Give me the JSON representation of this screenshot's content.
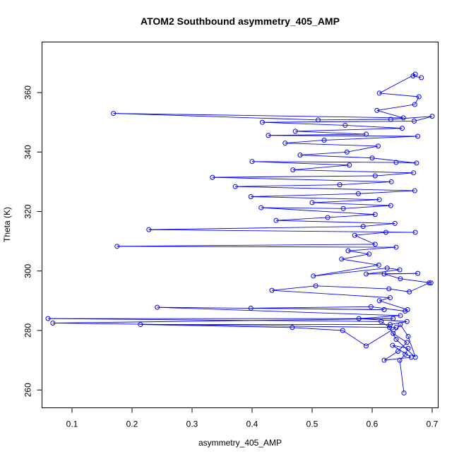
{
  "chart_data": {
    "type": "line",
    "title": "ATOM2 Southbound asymmetry_405_AMP",
    "xlabel": "asymmetry_405_AMP",
    "ylabel": "Theta (K)",
    "xlim": [
      0.05,
      0.71
    ],
    "ylim": [
      254,
      377
    ],
    "xticks": [
      "0.1",
      "0.2",
      "0.3",
      "0.4",
      "0.5",
      "0.6",
      "0.7"
    ],
    "yticks": [
      "260",
      "280",
      "300",
      "320",
      "340",
      "360"
    ],
    "marker": "open-circle",
    "series_color": "#0000ff",
    "series": [
      {
        "points": [
          [
            0.653,
            259
          ],
          [
            0.646,
            270
          ],
          [
            0.655,
            272
          ],
          [
            0.66,
            274
          ],
          [
            0.634,
            275
          ],
          [
            0.665,
            271
          ],
          [
            0.62,
            270
          ],
          [
            0.643,
            273
          ],
          [
            0.658,
            276
          ],
          [
            0.635,
            279
          ],
          [
            0.647,
            282
          ],
          [
            0.66,
            278
          ],
          [
            0.672,
            271
          ],
          [
            0.64,
            277
          ],
          [
            0.629,
            281
          ],
          [
            0.615,
            283
          ],
          [
            0.06,
            284
          ],
          [
            0.635,
            284
          ],
          [
            0.068,
            282.5
          ],
          [
            0.64,
            281
          ],
          [
            0.59,
            274.8
          ],
          [
            0.551,
            280
          ],
          [
            0.467,
            281
          ],
          [
            0.214,
            282
          ],
          [
            0.63,
            282
          ],
          [
            0.658,
            283
          ],
          [
            0.578,
            284
          ],
          [
            0.647,
            285
          ],
          [
            0.242,
            287.8
          ],
          [
            0.62,
            287
          ],
          [
            0.398,
            287.5
          ],
          [
            0.598,
            288
          ],
          [
            0.655,
            286.5
          ],
          [
            0.659,
            287
          ],
          [
            0.612,
            290
          ],
          [
            0.63,
            291
          ],
          [
            0.433,
            293.5
          ],
          [
            0.506,
            295
          ],
          [
            0.628,
            294
          ],
          [
            0.662,
            293
          ],
          [
            0.695,
            296
          ],
          [
            0.698,
            296
          ],
          [
            0.647,
            297.4
          ],
          [
            0.62,
            299
          ],
          [
            0.676,
            299.2
          ],
          [
            0.59,
            299
          ],
          [
            0.646,
            300.4
          ],
          [
            0.625,
            301
          ],
          [
            0.502,
            298.3
          ],
          [
            0.611,
            302
          ],
          [
            0.549,
            304
          ],
          [
            0.595,
            305.7
          ],
          [
            0.56,
            306.8
          ],
          [
            0.64,
            308
          ],
          [
            0.175,
            308.3
          ],
          [
            0.605,
            309
          ],
          [
            0.571,
            312
          ],
          [
            0.623,
            313
          ],
          [
            0.672,
            313
          ],
          [
            0.228,
            313.9
          ],
          [
            0.585,
            315
          ],
          [
            0.638,
            316
          ],
          [
            0.44,
            317
          ],
          [
            0.526,
            318
          ],
          [
            0.605,
            319
          ],
          [
            0.415,
            321.3
          ],
          [
            0.552,
            321
          ],
          [
            0.631,
            322
          ],
          [
            0.5,
            323
          ],
          [
            0.612,
            324
          ],
          [
            0.398,
            325
          ],
          [
            0.577,
            326
          ],
          [
            0.671,
            327
          ],
          [
            0.372,
            328.4
          ],
          [
            0.546,
            329
          ],
          [
            0.632,
            330
          ],
          [
            0.334,
            331.5
          ],
          [
            0.605,
            332
          ],
          [
            0.669,
            333
          ],
          [
            0.468,
            334
          ],
          [
            0.562,
            335.6
          ],
          [
            0.4,
            336.8
          ],
          [
            0.64,
            336.5
          ],
          [
            0.674,
            336.3
          ],
          [
            0.6,
            338
          ],
          [
            0.48,
            339
          ],
          [
            0.558,
            340
          ],
          [
            0.61,
            342
          ],
          [
            0.455,
            343
          ],
          [
            0.52,
            344
          ],
          [
            0.676,
            345.3
          ],
          [
            0.427,
            345.6
          ],
          [
            0.59,
            346
          ],
          [
            0.472,
            347
          ],
          [
            0.65,
            348
          ],
          [
            0.555,
            349
          ],
          [
            0.417,
            350
          ],
          [
            0.67,
            350.4
          ],
          [
            0.7,
            352
          ],
          [
            0.631,
            351
          ],
          [
            0.51,
            350.8
          ],
          [
            0.169,
            353
          ],
          [
            0.652,
            351.5
          ],
          [
            0.608,
            354
          ],
          [
            0.671,
            356
          ],
          [
            0.678,
            358.6
          ],
          [
            0.612,
            359.8
          ],
          [
            0.672,
            366.2
          ],
          [
            0.668,
            365.6
          ],
          [
            0.682,
            365
          ]
        ]
      }
    ]
  }
}
